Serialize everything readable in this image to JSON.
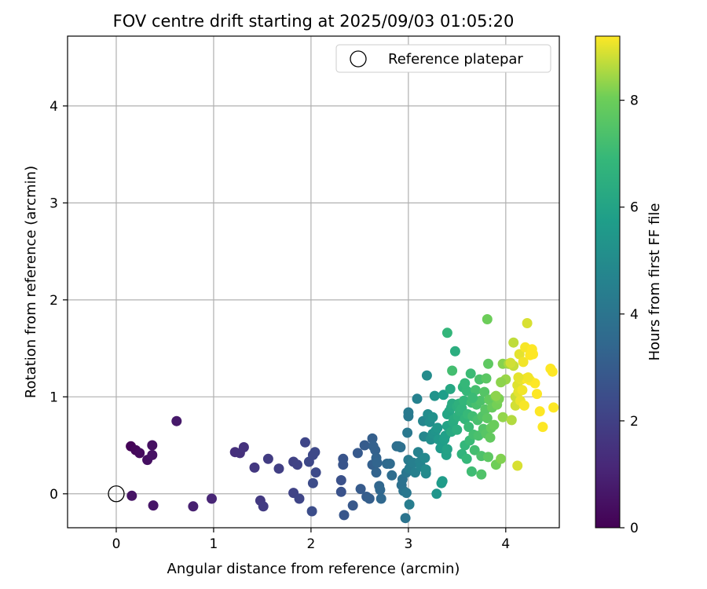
{
  "chart_data": {
    "type": "scatter",
    "title": "FOV centre drift starting at 2025/09/03 01:05:20",
    "xlabel": "Angular distance from reference (arcmin)",
    "ylabel": "Rotation from reference (arcmin)",
    "xlim": [
      -0.5,
      4.55
    ],
    "ylim": [
      -0.35,
      4.72
    ],
    "xticks": [
      0,
      1,
      2,
      3,
      4
    ],
    "yticks": [
      0,
      1,
      2,
      3,
      4
    ],
    "grid": true,
    "legend": {
      "position": "top-right",
      "entries": [
        "Reference platepar"
      ]
    },
    "reference_point": {
      "name": "Reference platepar",
      "x": 0,
      "y": 0
    },
    "colorbar": {
      "label": "Hours from first FF file",
      "min": 0,
      "max": 9.2,
      "ticks": [
        0,
        2,
        4,
        6,
        8
      ],
      "colormap": "viridis"
    },
    "series": [
      {
        "points": [
          [
            0.15,
            0.49,
            0.1
          ],
          [
            0.2,
            0.45,
            0.2
          ],
          [
            0.24,
            0.42,
            0.3
          ],
          [
            0.32,
            0.35,
            0.4
          ],
          [
            0.37,
            0.5,
            0.45
          ],
          [
            0.37,
            0.4,
            0.5
          ],
          [
            0.16,
            -0.02,
            0.55
          ],
          [
            0.38,
            -0.12,
            0.6
          ],
          [
            0.62,
            0.75,
            0.7
          ],
          [
            0.79,
            -0.13,
            0.9
          ],
          [
            0.98,
            -0.05,
            1.1
          ],
          [
            1.22,
            0.43,
            1.4
          ],
          [
            1.27,
            0.42,
            1.45
          ],
          [
            1.31,
            0.48,
            1.5
          ],
          [
            1.42,
            0.27,
            1.7
          ],
          [
            1.48,
            -0.07,
            1.75
          ],
          [
            1.51,
            -0.13,
            1.8
          ],
          [
            1.56,
            0.36,
            1.85
          ],
          [
            1.67,
            0.26,
            1.95
          ],
          [
            1.82,
            0.33,
            2.05
          ],
          [
            1.86,
            0.3,
            2.1
          ],
          [
            1.82,
            0.01,
            2.1
          ],
          [
            1.88,
            -0.05,
            2.15
          ],
          [
            1.94,
            0.53,
            2.2
          ],
          [
            1.98,
            0.33,
            2.25
          ],
          [
            2.02,
            0.4,
            2.3
          ],
          [
            2.04,
            0.43,
            2.3
          ],
          [
            2.05,
            0.22,
            2.35
          ],
          [
            2.02,
            0.11,
            2.4
          ],
          [
            2.01,
            -0.18,
            2.45
          ],
          [
            2.31,
            0.14,
            2.6
          ],
          [
            2.31,
            0.02,
            2.65
          ],
          [
            2.33,
            0.36,
            2.7
          ],
          [
            2.33,
            0.3,
            2.75
          ],
          [
            2.34,
            -0.22,
            2.8
          ],
          [
            2.43,
            -0.12,
            2.85
          ],
          [
            2.48,
            0.42,
            2.9
          ],
          [
            2.51,
            0.05,
            2.95
          ],
          [
            2.55,
            0.5,
            3.0
          ],
          [
            2.57,
            -0.03,
            3.05
          ],
          [
            2.6,
            -0.05,
            3.1
          ],
          [
            2.63,
            0.57,
            3.1
          ],
          [
            2.63,
            0.3,
            3.15
          ],
          [
            2.64,
            0.49,
            3.2
          ],
          [
            2.66,
            0.45,
            3.2
          ],
          [
            2.67,
            0.37,
            3.25
          ],
          [
            2.67,
            0.22,
            3.3
          ],
          [
            2.68,
            0.32,
            3.35
          ],
          [
            2.7,
            0.08,
            3.4
          ],
          [
            2.71,
            0.04,
            3.45
          ],
          [
            2.72,
            -0.05,
            3.5
          ],
          [
            2.78,
            0.31,
            3.55
          ],
          [
            2.81,
            0.31,
            3.6
          ],
          [
            2.83,
            0.19,
            3.65
          ],
          [
            2.88,
            0.49,
            3.7
          ],
          [
            2.9,
            0.49,
            3.75
          ],
          [
            2.92,
            0.48,
            3.8
          ],
          [
            2.93,
            0.09,
            3.85
          ],
          [
            2.94,
            0.15,
            3.9
          ],
          [
            2.95,
            0.03,
            3.95
          ],
          [
            2.97,
            -0.25,
            4.0
          ],
          [
            2.98,
            0.22,
            4.05
          ],
          [
            2.98,
            0.01,
            4.1
          ],
          [
            2.99,
            0.63,
            4.15
          ],
          [
            3.0,
            0.8,
            4.2
          ],
          [
            3.0,
            0.84,
            4.25
          ],
          [
            3.0,
            0.35,
            4.3
          ],
          [
            3.01,
            0.26,
            4.35
          ],
          [
            3.01,
            -0.11,
            4.4
          ],
          [
            3.05,
            0.32,
            4.45
          ],
          [
            3.07,
            0.22,
            4.5
          ],
          [
            3.09,
            0.98,
            4.55
          ],
          [
            3.1,
            0.43,
            4.6
          ],
          [
            3.12,
            0.33,
            4.65
          ],
          [
            3.13,
            0.28,
            4.7
          ],
          [
            3.15,
            0.75,
            4.75
          ],
          [
            3.16,
            0.59,
            4.8
          ],
          [
            3.17,
            0.37,
            4.85
          ],
          [
            3.18,
            0.21,
            4.9
          ],
          [
            3.18,
            0.25,
            4.95
          ],
          [
            3.19,
            1.22,
            5.0
          ],
          [
            3.2,
            0.82,
            5.05
          ],
          [
            3.22,
            0.74,
            5.1
          ],
          [
            3.23,
            0.56,
            5.15
          ],
          [
            3.25,
            0.79,
            5.2
          ],
          [
            3.25,
            0.62,
            5.25
          ],
          [
            3.27,
            1.01,
            5.3
          ],
          [
            3.28,
            0.65,
            5.35
          ],
          [
            3.29,
            0.0,
            5.4
          ],
          [
            3.3,
            0.68,
            5.45
          ],
          [
            3.31,
            0.56,
            5.5
          ],
          [
            3.33,
            0.47,
            5.55
          ],
          [
            3.34,
            0.11,
            5.6
          ],
          [
            3.35,
            0.13,
            5.65
          ],
          [
            3.35,
            0.49,
            5.7
          ],
          [
            3.36,
            1.02,
            5.75
          ],
          [
            3.37,
            0.56,
            5.8
          ],
          [
            3.38,
            0.6,
            5.85
          ],
          [
            3.39,
            0.4,
            5.9
          ],
          [
            3.4,
            0.46,
            5.95
          ],
          [
            3.4,
            0.7,
            6.0
          ],
          [
            3.4,
            0.82,
            6.05
          ],
          [
            3.42,
            0.85,
            6.1
          ],
          [
            3.43,
            1.08,
            6.15
          ],
          [
            3.44,
            0.89,
            6.2
          ],
          [
            3.44,
            0.64,
            6.25
          ],
          [
            3.45,
            0.93,
            6.3
          ],
          [
            3.46,
            0.74,
            6.35
          ],
          [
            3.47,
            0.77,
            6.4
          ],
          [
            3.48,
            1.47,
            6.45
          ],
          [
            3.5,
            0.9,
            6.5
          ],
          [
            3.5,
            0.66,
            6.5
          ],
          [
            3.51,
            0.8,
            6.55
          ],
          [
            3.52,
            0.93,
            6.6
          ],
          [
            3.53,
            0.85,
            6.65
          ],
          [
            3.55,
            0.88,
            6.7
          ],
          [
            3.55,
            0.41,
            6.7
          ],
          [
            3.56,
            1.1,
            6.75
          ],
          [
            3.57,
            0.96,
            6.8
          ],
          [
            3.58,
            0.77,
            6.8
          ],
          [
            3.58,
            0.5,
            6.85
          ],
          [
            3.6,
            0.36,
            6.9
          ],
          [
            3.6,
            1.06,
            6.9
          ],
          [
            3.61,
            0.82,
            6.95
          ],
          [
            3.62,
            0.69,
            7.0
          ],
          [
            3.63,
            0.55,
            7.0
          ],
          [
            3.64,
            1.24,
            7.05
          ],
          [
            3.65,
            0.94,
            7.1
          ],
          [
            3.65,
            0.23,
            7.1
          ],
          [
            3.66,
            0.8,
            7.15
          ],
          [
            3.67,
            0.61,
            7.2
          ],
          [
            3.68,
            0.45,
            7.2
          ],
          [
            3.69,
            1.07,
            7.25
          ],
          [
            3.7,
            0.92,
            7.3
          ],
          [
            3.71,
            0.76,
            7.3
          ],
          [
            3.72,
            0.6,
            7.35
          ],
          [
            3.73,
            1.18,
            7.35
          ],
          [
            3.74,
            0.96,
            7.4
          ],
          [
            3.75,
            0.39,
            7.4
          ],
          [
            3.75,
            0.2,
            7.45
          ],
          [
            3.76,
            0.8,
            7.5
          ],
          [
            3.77,
            0.67,
            7.5
          ],
          [
            3.78,
            1.05,
            7.55
          ],
          [
            3.79,
            0.87,
            7.6
          ],
          [
            3.8,
            0.62,
            7.6
          ],
          [
            3.8,
            1.19,
            7.65
          ],
          [
            3.81,
            0.78,
            7.7
          ],
          [
            3.82,
            0.38,
            7.7
          ],
          [
            3.82,
            1.34,
            7.75
          ],
          [
            3.83,
            0.97,
            7.8
          ],
          [
            3.84,
            0.58,
            7.8
          ],
          [
            3.85,
            0.68,
            7.85
          ],
          [
            3.86,
            0.89,
            7.9
          ],
          [
            3.88,
            0.71,
            7.95
          ],
          [
            3.89,
            1.0,
            8.0
          ],
          [
            3.9,
            0.3,
            8.05
          ],
          [
            3.91,
            0.92,
            8.1
          ],
          [
            3.93,
            0.98,
            8.15
          ],
          [
            3.95,
            0.36,
            8.2
          ],
          [
            3.97,
            1.34,
            8.25
          ],
          [
            3.9,
            1.01,
            8.3
          ],
          [
            3.97,
            0.79,
            8.35
          ],
          [
            3.81,
            1.8,
            8.0
          ],
          [
            3.4,
            1.66,
            6.8
          ],
          [
            3.45,
            1.27,
            7.2
          ],
          [
            4.0,
            1.18,
            8.4
          ],
          [
            4.03,
            1.34,
            8.5
          ],
          [
            4.06,
            0.76,
            8.6
          ],
          [
            4.08,
            1.56,
            8.7
          ],
          [
            4.08,
            1.32,
            8.75
          ],
          [
            4.1,
            1.0,
            8.8
          ],
          [
            4.1,
            0.91,
            8.85
          ],
          [
            4.12,
            0.29,
            8.9
          ],
          [
            4.12,
            1.12,
            8.95
          ],
          [
            4.13,
            1.05,
            9.0
          ],
          [
            4.14,
            1.44,
            9.0
          ],
          [
            4.15,
            0.96,
            9.05
          ],
          [
            4.16,
            1.18,
            9.05
          ],
          [
            4.17,
            1.07,
            9.1
          ],
          [
            4.18,
            1.36,
            9.1
          ],
          [
            4.19,
            0.91,
            9.15
          ],
          [
            4.2,
            1.51,
            9.15
          ],
          [
            4.21,
            1.19,
            9.2
          ],
          [
            4.22,
            1.76,
            8.9
          ],
          [
            4.25,
            1.43,
            9.2
          ],
          [
            4.25,
            1.17,
            9.2
          ],
          [
            4.27,
            1.49,
            9.2
          ],
          [
            4.28,
            1.44,
            9.2
          ],
          [
            4.3,
            1.14,
            9.2
          ],
          [
            4.32,
            1.03,
            9.2
          ],
          [
            4.35,
            0.85,
            9.2
          ],
          [
            4.38,
            0.69,
            9.2
          ],
          [
            4.46,
            1.29,
            9.2
          ],
          [
            4.48,
            1.26,
            9.2
          ],
          [
            4.49,
            0.89,
            9.2
          ],
          [
            4.23,
            1.2,
            9.1
          ],
          [
            4.13,
            1.2,
            9.0
          ],
          [
            4.05,
            1.35,
            8.85
          ],
          [
            3.95,
            1.15,
            8.3
          ],
          [
            3.58,
            1.14,
            6.9
          ],
          [
            3.66,
            0.99,
            7.05
          ]
        ]
      }
    ]
  }
}
